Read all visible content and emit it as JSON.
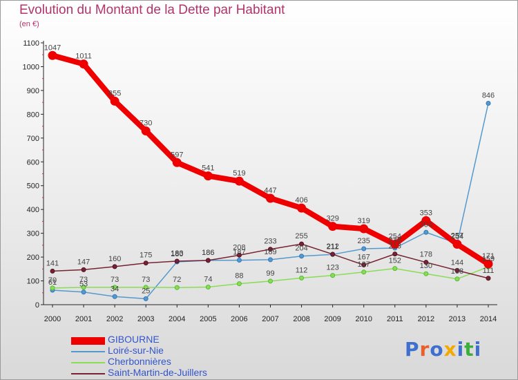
{
  "title": "Evolution du Montant de la Dette par Habitant",
  "subtitle": "(en €)",
  "brand": {
    "text": "Proxiti",
    "colors": [
      "#3f6fcf",
      "#e8612c",
      "#3f6fcf",
      "#f2a900",
      "#3f6fcf",
      "#3cae3c",
      "#3f6fcf"
    ]
  },
  "chart_data": {
    "type": "line",
    "title": "Evolution du Montant de la Dette par Habitant",
    "ylabel": "(en €)",
    "xlabel": "",
    "ylim": [
      0,
      1100
    ],
    "yticks": [
      0,
      100,
      200,
      300,
      400,
      500,
      600,
      700,
      800,
      900,
      1000,
      1100
    ],
    "x": [
      "2000",
      "2001",
      "2002",
      "2003",
      "2004",
      "2005",
      "2006",
      "2007",
      "2008",
      "2009",
      "2010",
      "2011",
      "2012",
      "2013",
      "2014"
    ],
    "grid": false,
    "legend_position": "bottom-left",
    "series": [
      {
        "name": "GIBOURNE",
        "color": "#ee0000",
        "values": [
          1047,
          1011,
          855,
          730,
          597,
          541,
          519,
          447,
          406,
          329,
          319,
          254,
          353,
          254,
          171
        ],
        "labels": [
          "1047",
          "1011",
          "855",
          "730",
          "597",
          "541",
          "519",
          "447",
          "406",
          "329",
          "319",
          "254",
          "353",
          "254",
          "171"
        ]
      },
      {
        "name": "Loiré-sur-Nie",
        "color": "#5599cc",
        "values": [
          61,
          53,
          34,
          25,
          180,
          186,
          187,
          189,
          204,
          211,
          235,
          238,
          304,
          257,
          846
        ],
        "labels": [
          "61",
          "53",
          "34",
          "25",
          "180",
          "186",
          "187",
          "189",
          "204",
          "211",
          "235",
          "238",
          "304",
          "257",
          "846"
        ]
      },
      {
        "name": "Cherbonnières",
        "color": "#88dd55",
        "values": [
          70,
          73,
          73,
          73,
          72,
          74,
          88,
          99,
          112,
          123,
          137,
          152,
          130,
          108,
          159
        ],
        "labels": [
          "70",
          "73",
          "73",
          "73",
          "72",
          "74",
          "88",
          "99",
          "112",
          "123",
          "137",
          "152",
          "130",
          "108",
          "159"
        ]
      },
      {
        "name": "Saint-Martin-de-Juillers",
        "color": "#772233",
        "values": [
          141,
          147,
          160,
          175,
          183,
          186,
          208,
          233,
          255,
          212,
          167,
          213,
          178,
          144,
          111
        ],
        "labels": [
          "141",
          "147",
          "160",
          "175",
          "183",
          "186",
          "208",
          "233",
          "255",
          "212",
          "167",
          "213",
          "178",
          "144",
          "111"
        ]
      }
    ]
  }
}
